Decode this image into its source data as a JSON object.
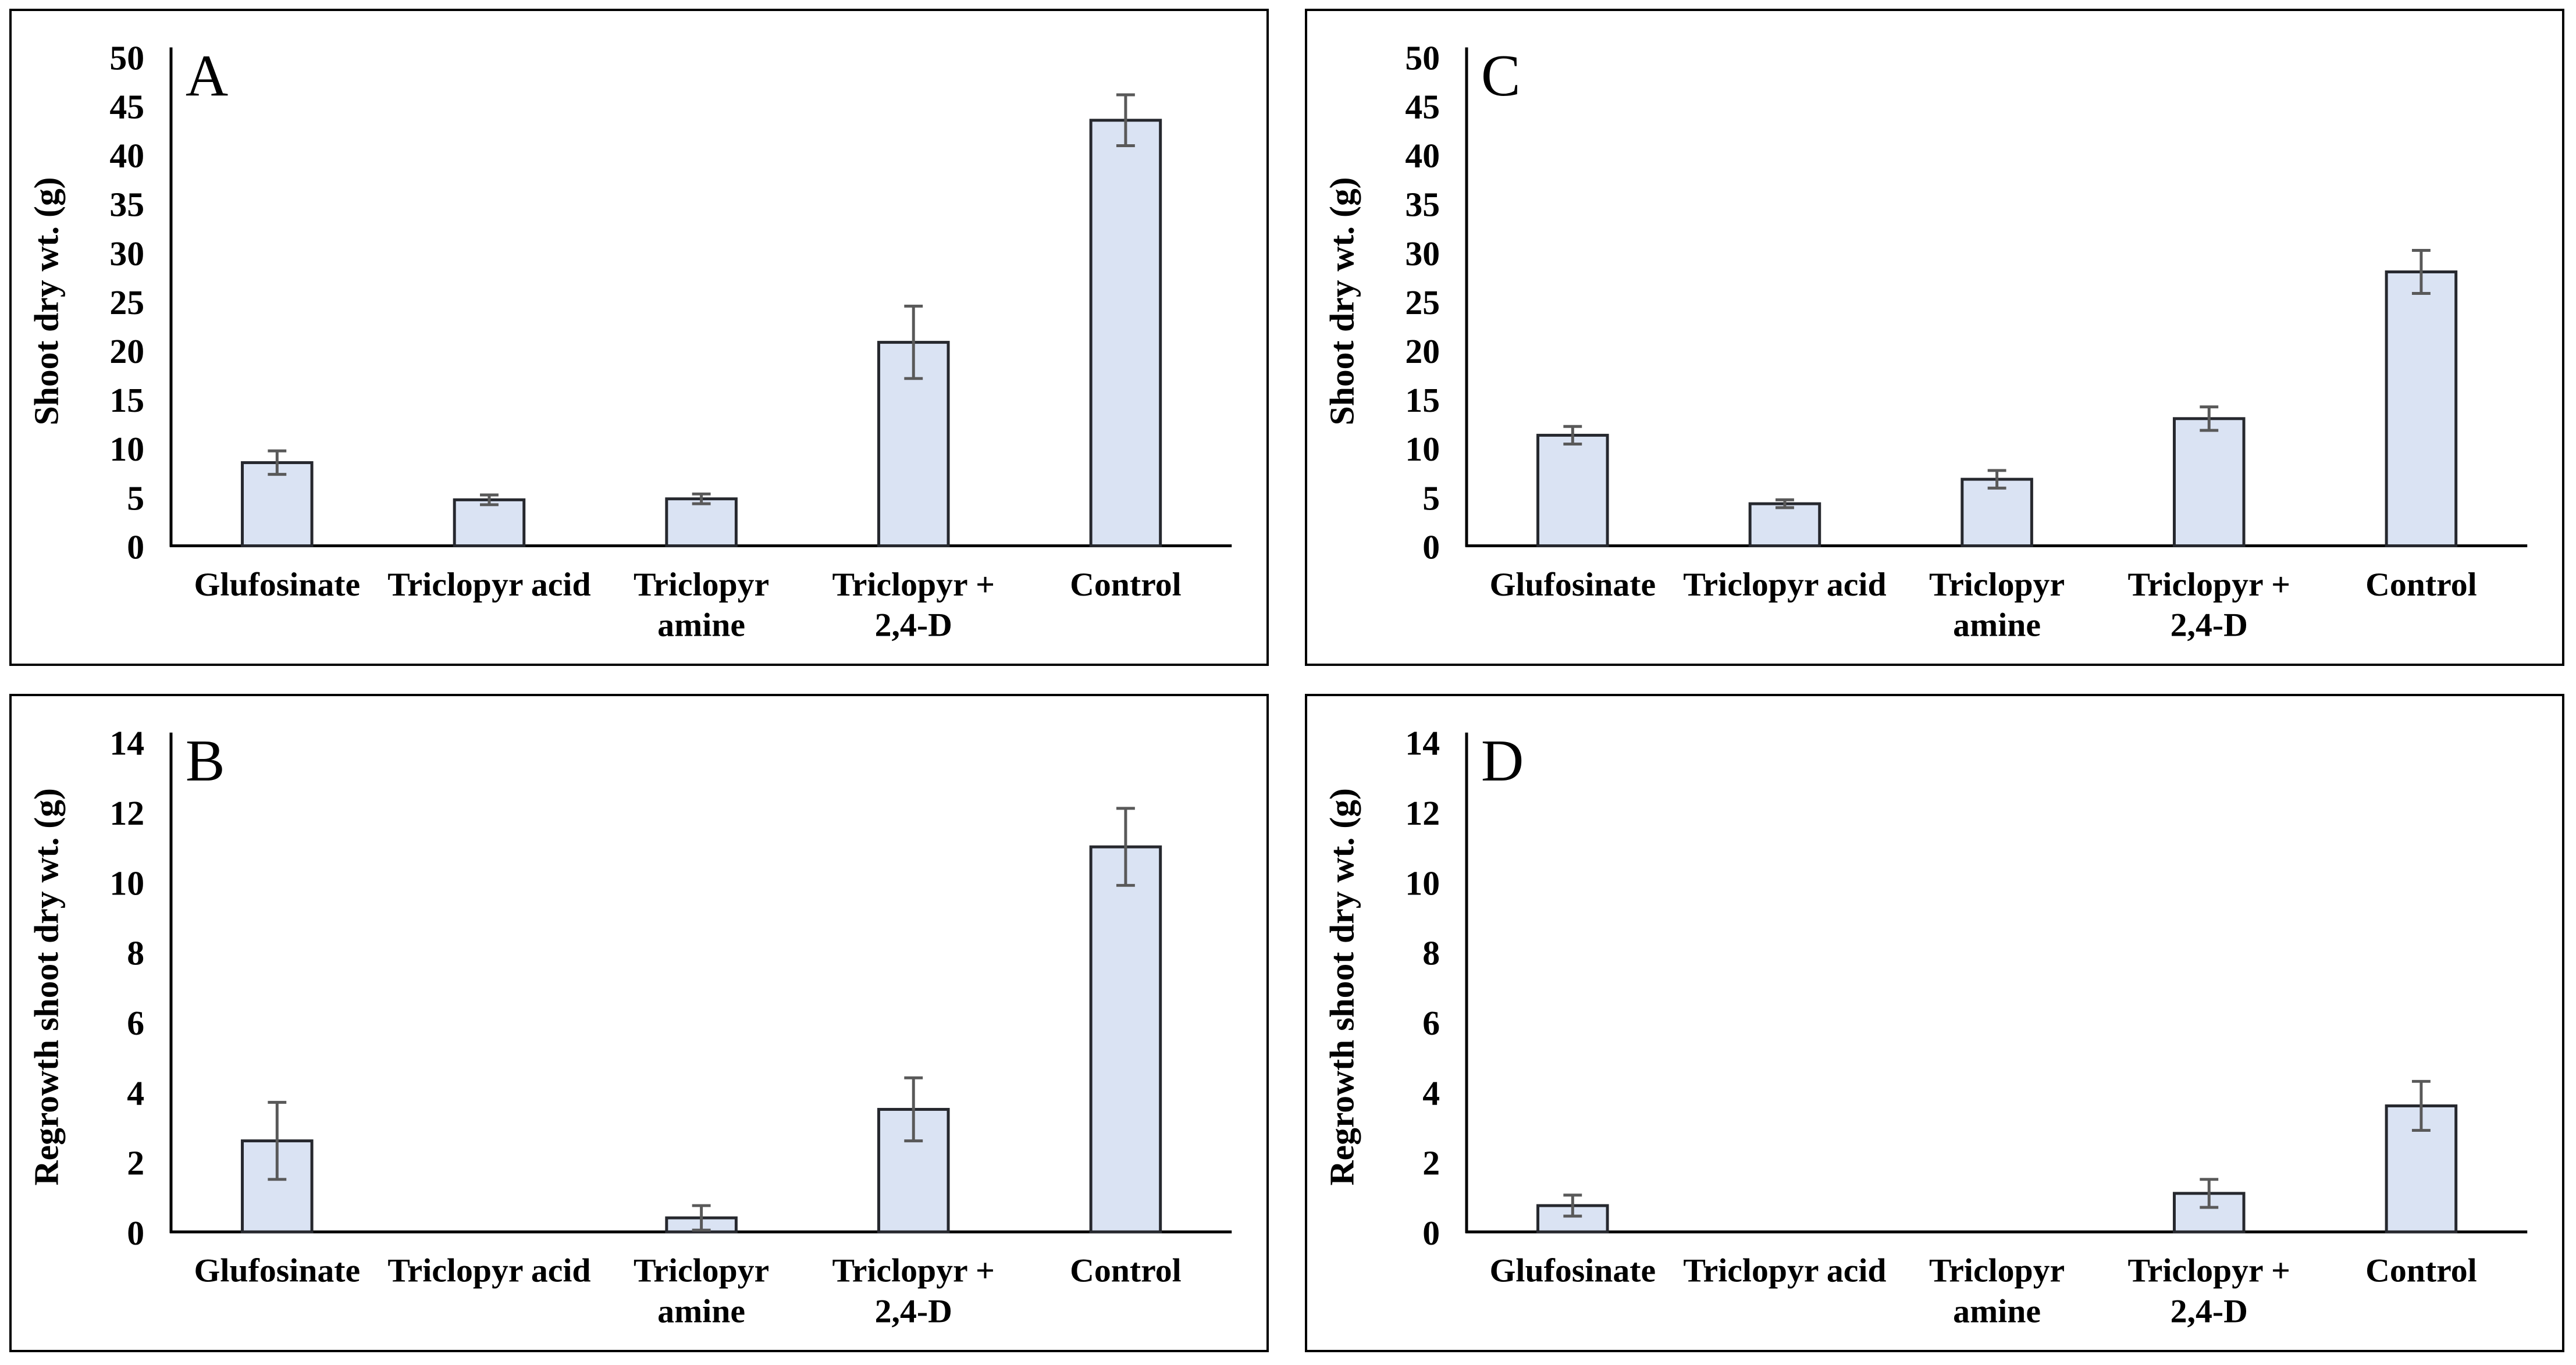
{
  "figure": {
    "background": "#ffffff",
    "panel_border_color": "#000000",
    "axis_color": "#000000",
    "text_color": "#000000",
    "bar_fill": "#dae3f3",
    "bar_stroke": "#26282e",
    "error_color": "#595959"
  },
  "chart_data": [
    {
      "type": "bar",
      "panel_label": "A",
      "title": "",
      "xlabel": "",
      "ylabel": "Shoot dry wt. (g)",
      "ylim": [
        0,
        50
      ],
      "ytick_step": 5,
      "grid": false,
      "legend_position": "none",
      "categories": [
        "Glufosinate",
        "Triclopyr acid",
        "Triclopyr\namine",
        "Triclopyr +\n2,4-D",
        "Control"
      ],
      "values": [
        8.5,
        4.7,
        4.8,
        20.8,
        43.5
      ],
      "error_bars": [
        1.2,
        0.5,
        0.5,
        3.7,
        2.6
      ]
    },
    {
      "type": "bar",
      "panel_label": "C",
      "title": "",
      "xlabel": "",
      "ylabel": "Shoot dry wt. (g)",
      "ylim": [
        0,
        50
      ],
      "ytick_step": 5,
      "grid": false,
      "legend_position": "none",
      "categories": [
        "Glufosinate",
        "Triclopyr acid",
        "Triclopyr\namine",
        "Triclopyr +\n2,4-D",
        "Control"
      ],
      "values": [
        11.3,
        4.3,
        6.8,
        13.0,
        28.0
      ],
      "error_bars": [
        0.9,
        0.4,
        0.9,
        1.2,
        2.2
      ]
    },
    {
      "type": "bar",
      "panel_label": "B",
      "title": "",
      "xlabel": "",
      "ylabel": "Regrowth shoot dry wt. (g)",
      "ylim": [
        0,
        14
      ],
      "ytick_step": 2,
      "grid": false,
      "legend_position": "none",
      "categories": [
        "Glufosinate",
        "Triclopyr acid",
        "Triclopyr\namine",
        "Triclopyr +\n2,4-D",
        "Control"
      ],
      "values": [
        2.6,
        0,
        0.4,
        3.5,
        11.0
      ],
      "error_bars": [
        1.1,
        0,
        0.35,
        0.9,
        1.1
      ]
    },
    {
      "type": "bar",
      "panel_label": "D",
      "title": "",
      "xlabel": "",
      "ylabel": "Regrowth shoot dry wt. (g)",
      "ylim": [
        0,
        14
      ],
      "ytick_step": 2,
      "grid": false,
      "legend_position": "none",
      "categories": [
        "Glufosinate",
        "Triclopyr acid",
        "Triclopyr\namine",
        "Triclopyr +\n2,4-D",
        "Control"
      ],
      "values": [
        0.75,
        0,
        0,
        1.1,
        3.6
      ],
      "error_bars": [
        0.3,
        0,
        0,
        0.4,
        0.7
      ]
    }
  ]
}
